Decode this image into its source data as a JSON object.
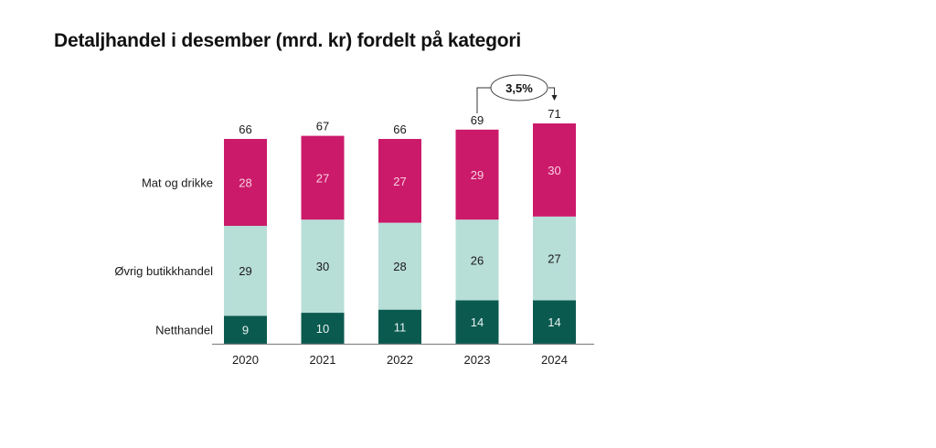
{
  "chart_data": {
    "type": "bar",
    "stacked": true,
    "title": "Detaljhandel i desember (mrd. kr) fordelt på kategori",
    "xlabel": "",
    "ylabel": "",
    "categories": [
      "2020",
      "2021",
      "2022",
      "2023",
      "2024"
    ],
    "series": [
      {
        "name": "Netthandel",
        "values": [
          9,
          10,
          11,
          14,
          14
        ],
        "color": "#0b5a50",
        "label_color": "#e6f3f0"
      },
      {
        "name": "Øvrig butikkhandel",
        "values": [
          29,
          30,
          28,
          26,
          27
        ],
        "color": "#b8ded8",
        "label_color": "#1a1a1a"
      },
      {
        "name": "Mat og drikke",
        "values": [
          28,
          27,
          27,
          29,
          30
        ],
        "color": "#cc1a6a",
        "label_color": "#f6d0e2"
      }
    ],
    "totals": [
      66,
      67,
      66,
      69,
      71
    ],
    "ylim": [
      0,
      71
    ],
    "grid": false,
    "legend": "left",
    "annotation": {
      "text": "3,5%",
      "from": "2023",
      "to": "2024"
    }
  }
}
